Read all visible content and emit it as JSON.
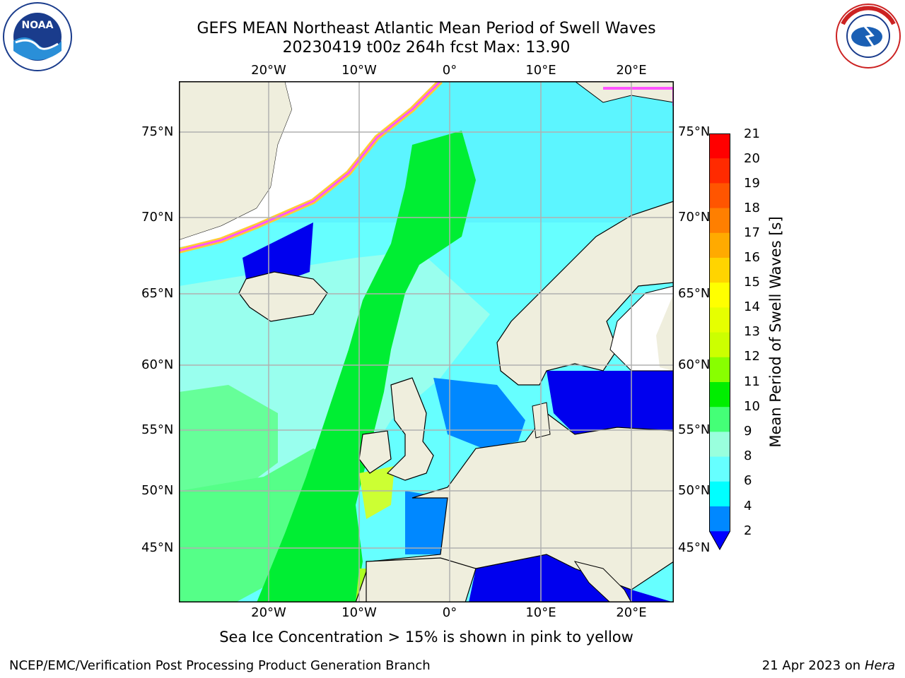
{
  "title": {
    "line1": "GEFS MEAN Northeast Atlantic Mean Period of Swell Waves",
    "line2": "20230419 t00z 264h fcst   Max: 13.90"
  },
  "logos": {
    "left_icon": "noaa-logo",
    "right_icon": "nws-logo"
  },
  "axes": {
    "lon_labels": [
      "20°W",
      "10°W",
      "0°",
      "10°E",
      "20°E"
    ],
    "lat_labels": [
      "75°N",
      "70°N",
      "65°N",
      "60°N",
      "55°N",
      "50°N",
      "45°N"
    ]
  },
  "colorbar": {
    "title": "Mean Period of Swell Waves [s]",
    "ticks": [
      "21",
      "20",
      "19",
      "18",
      "17",
      "16",
      "15",
      "14",
      "13",
      "12",
      "11",
      "10",
      "9",
      "8",
      "6",
      "4",
      "2"
    ],
    "colors": [
      "#ff0000",
      "#ff2a00",
      "#ff5500",
      "#ff7f00",
      "#ffaa00",
      "#ffd400",
      "#ffff00",
      "#e6ff00",
      "#ccff00",
      "#88ff00",
      "#00ee00",
      "#44ff77",
      "#99ffdd",
      "#66ffff",
      "#00ffff",
      "#0088ff",
      "#0000ff"
    ]
  },
  "note": "Sea Ice Concentration > 15% is shown in pink to yellow",
  "footer": {
    "left": "NCEP/EMC/Verification Post Processing Product Generation Branch",
    "right_prefix": "21 Apr 2023 on ",
    "right_host": "Hera"
  }
}
